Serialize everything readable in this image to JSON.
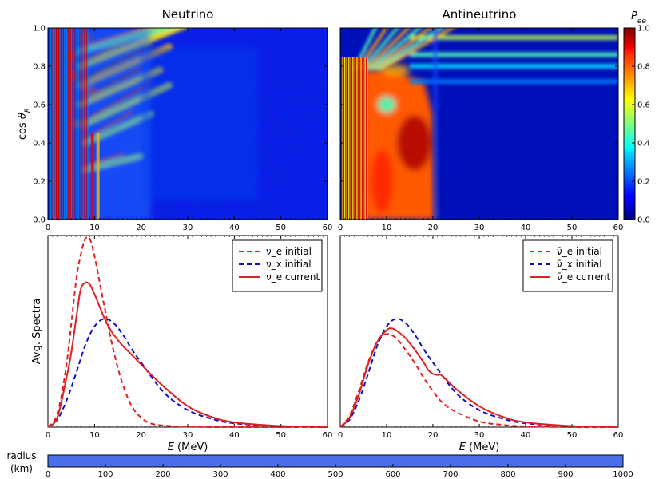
{
  "chart_data": [
    {
      "type": "heatmap",
      "title": "Neutrino",
      "xlim": [
        0,
        60
      ],
      "ylim": [
        0.0,
        1.0
      ],
      "ylabel": "cos ϑ_R",
      "xticks": [
        "0",
        "10",
        "20",
        "30",
        "40",
        "50",
        "60"
      ],
      "yticks": [
        "0.0",
        "0.2",
        "0.4",
        "0.6",
        "0.8",
        "1.0"
      ],
      "colormap": "jet"
    },
    {
      "type": "heatmap",
      "title": "Antineutrino",
      "xlim": [
        0,
        60
      ],
      "ylim": [
        0.0,
        1.0
      ],
      "xticks": [
        "0",
        "10",
        "20",
        "30",
        "40",
        "50",
        "60"
      ],
      "yticks": [
        "0.0",
        "0.2",
        "0.4",
        "0.6",
        "0.8",
        "1.0"
      ],
      "colormap": "jet"
    },
    {
      "type": "colorbar",
      "label": "P_ee",
      "range": [
        0.0,
        1.0
      ],
      "ticks": [
        "0.0",
        "0.2",
        "0.4",
        "0.6",
        "0.8",
        "1.0"
      ]
    },
    {
      "type": "line",
      "xlabel": "E (MeV)",
      "ylabel": "Avg. Spectra",
      "xlim": [
        0,
        60
      ],
      "ylim": [
        0,
        1.0
      ],
      "xticks": [
        "0",
        "10",
        "20",
        "30",
        "40",
        "50",
        "60"
      ],
      "legend": "top-right",
      "series": [
        {
          "name": "ν_e initial",
          "style": "dashed",
          "color": "#e02020",
          "x": [
            0,
            2,
            4,
            6,
            7,
            8,
            9,
            10,
            12,
            14,
            16,
            18,
            20,
            22,
            25,
            30,
            35,
            40,
            60
          ],
          "y": [
            0,
            0.07,
            0.33,
            0.76,
            0.9,
            0.99,
            0.99,
            0.9,
            0.65,
            0.41,
            0.23,
            0.11,
            0.05,
            0.02,
            0.008,
            0.002,
            0,
            0,
            0
          ]
        },
        {
          "name": "ν_x initial",
          "style": "dashed",
          "color": "#1010c0",
          "x": [
            0,
            2,
            4,
            6,
            8,
            10,
            12,
            14,
            16,
            18,
            20,
            25,
            30,
            35,
            40,
            50,
            60
          ],
          "y": [
            0,
            0.04,
            0.14,
            0.28,
            0.43,
            0.53,
            0.57,
            0.55,
            0.49,
            0.41,
            0.34,
            0.18,
            0.09,
            0.045,
            0.02,
            0.005,
            0
          ]
        },
        {
          "name": "ν_e current",
          "style": "solid",
          "color": "#e02020",
          "x": [
            0,
            2,
            4,
            5,
            6,
            7,
            8,
            9,
            10,
            11,
            12,
            13,
            14,
            16,
            18,
            20,
            22,
            25,
            30,
            35,
            40,
            50,
            60
          ],
          "y": [
            0,
            0.05,
            0.26,
            0.39,
            0.56,
            0.72,
            0.76,
            0.75,
            0.7,
            0.64,
            0.58,
            0.53,
            0.49,
            0.43,
            0.38,
            0.33,
            0.28,
            0.21,
            0.11,
            0.055,
            0.025,
            0.006,
            0
          ]
        }
      ]
    },
    {
      "type": "line",
      "xlabel": "E (MeV)",
      "xlim": [
        0,
        60
      ],
      "ylim": [
        0,
        1.0
      ],
      "xticks": [
        "0",
        "10",
        "20",
        "30",
        "40",
        "50",
        "60"
      ],
      "legend": "top-right",
      "series": [
        {
          "name": "ν̄_e initial",
          "style": "dashed",
          "color": "#e02020",
          "x": [
            0,
            2,
            4,
            6,
            8,
            10,
            12,
            14,
            16,
            18,
            20,
            22,
            25,
            30,
            35,
            40,
            50,
            60
          ],
          "y": [
            0,
            0.06,
            0.19,
            0.34,
            0.45,
            0.49,
            0.47,
            0.41,
            0.34,
            0.26,
            0.19,
            0.13,
            0.08,
            0.03,
            0.012,
            0.004,
            0,
            0
          ]
        },
        {
          "name": "ν̄_x initial",
          "style": "dashed",
          "color": "#1010c0",
          "x": [
            0,
            2,
            4,
            6,
            8,
            10,
            12,
            14,
            16,
            18,
            20,
            25,
            30,
            35,
            40,
            50,
            60
          ],
          "y": [
            0,
            0.04,
            0.14,
            0.28,
            0.43,
            0.53,
            0.57,
            0.55,
            0.49,
            0.41,
            0.34,
            0.18,
            0.09,
            0.045,
            0.02,
            0.005,
            0
          ]
        },
        {
          "name": "ν̄_e current",
          "style": "solid",
          "color": "#e02020",
          "x": [
            0,
            2,
            4,
            6,
            8,
            10,
            11,
            12,
            14,
            16,
            18,
            19,
            20,
            21,
            22,
            25,
            30,
            35,
            40,
            50,
            60
          ],
          "y": [
            0,
            0.05,
            0.17,
            0.33,
            0.45,
            0.51,
            0.52,
            0.51,
            0.47,
            0.41,
            0.34,
            0.3,
            0.28,
            0.275,
            0.27,
            0.2,
            0.11,
            0.055,
            0.025,
            0.006,
            0
          ]
        }
      ]
    },
    {
      "type": "progress",
      "label": "radius\n(km)",
      "xlim": [
        0,
        1000
      ],
      "value": 1000,
      "xticks": [
        "0",
        "100",
        "200",
        "300",
        "400",
        "500",
        "600",
        "700",
        "800",
        "900",
        "1000"
      ],
      "color": "#4a6ee8"
    }
  ]
}
